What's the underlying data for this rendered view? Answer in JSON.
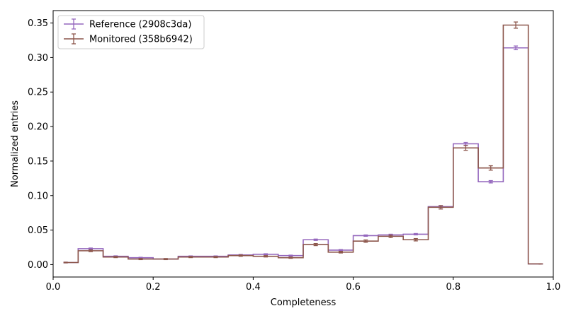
{
  "chart_data": {
    "type": "histogram-step",
    "xlabel": "Completeness",
    "ylabel": "Normalized entries",
    "xlim": [
      0.0,
      1.0
    ],
    "ylim": [
      -0.018,
      0.368
    ],
    "x_ticks": [
      0.0,
      0.2,
      0.4,
      0.6,
      0.8,
      1.0
    ],
    "x_tick_labels": [
      "0.0",
      "0.2",
      "0.4",
      "0.6",
      "0.8",
      "1.0"
    ],
    "y_ticks": [
      0.0,
      0.05,
      0.1,
      0.15,
      0.2,
      0.25,
      0.3,
      0.35
    ],
    "y_tick_labels": [
      "0.00",
      "0.05",
      "0.10",
      "0.15",
      "0.20",
      "0.25",
      "0.30",
      "0.35"
    ],
    "grid": false,
    "legend_position": "top-left",
    "bin_edges": [
      0.0,
      0.05,
      0.1,
      0.15,
      0.2,
      0.25,
      0.3,
      0.35,
      0.4,
      0.45,
      0.5,
      0.55,
      0.6,
      0.65,
      0.7,
      0.75,
      0.8,
      0.85,
      0.9,
      0.95,
      1.0
    ],
    "series": [
      {
        "name": "Reference (2908c3da)",
        "color": "#9467bd",
        "values": [
          0.003,
          0.023,
          0.012,
          0.01,
          0.008,
          0.012,
          0.012,
          0.014,
          0.015,
          0.013,
          0.036,
          0.021,
          0.042,
          0.043,
          0.044,
          0.084,
          0.175,
          0.12,
          0.314,
          0.001
        ],
        "errors": [
          0.0005,
          0.001,
          0.0007,
          0.0006,
          0.0005,
          0.0006,
          0.0006,
          0.0007,
          0.0007,
          0.0007,
          0.001,
          0.0008,
          0.001,
          0.001,
          0.001,
          0.0014,
          0.002,
          0.0017,
          0.0027,
          0.0002
        ]
      },
      {
        "name": "Monitored (358b6942)",
        "color": "#8c564b",
        "values": [
          0.003,
          0.02,
          0.011,
          0.008,
          0.008,
          0.011,
          0.011,
          0.013,
          0.012,
          0.01,
          0.029,
          0.018,
          0.034,
          0.041,
          0.036,
          0.083,
          0.169,
          0.14,
          0.347,
          0.001
        ],
        "errors": [
          0.0005,
          0.0012,
          0.0009,
          0.0008,
          0.0008,
          0.0009,
          0.0009,
          0.001,
          0.001,
          0.0009,
          0.0015,
          0.0012,
          0.0017,
          0.0018,
          0.0017,
          0.0025,
          0.0035,
          0.0032,
          0.0045,
          0.0002
        ]
      }
    ]
  }
}
